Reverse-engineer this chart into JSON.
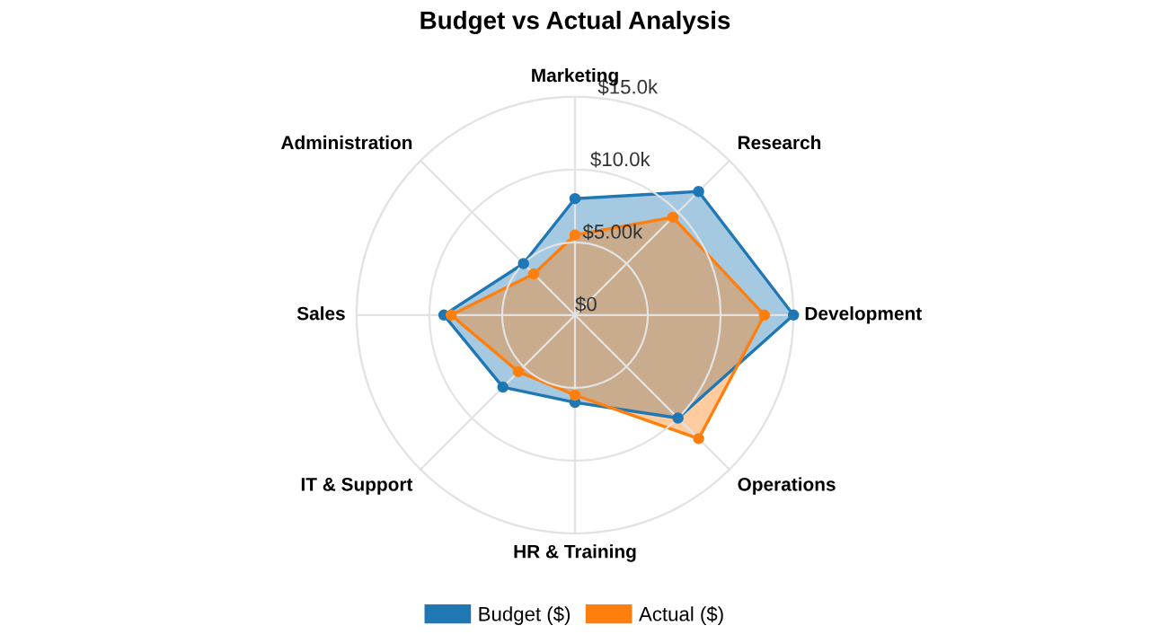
{
  "chart_data": {
    "type": "radar",
    "title": "Budget vs Actual Analysis",
    "categories": [
      "Marketing",
      "Research",
      "Development",
      "Operations",
      "HR & Training",
      "IT & Support",
      "Sales",
      "Administration"
    ],
    "series": [
      {
        "name": "Budget ($)",
        "color": "#1f77b4",
        "values": [
          8.0,
          12.0,
          15.0,
          10.0,
          6.0,
          7.0,
          9.0,
          5.0
        ]
      },
      {
        "name": "Actual ($)",
        "color": "#ff7f0e",
        "values": [
          5.5,
          9.5,
          13.0,
          12.0,
          5.5,
          5.5,
          8.5,
          4.0
        ]
      }
    ],
    "ylim": [
      0,
      15
    ],
    "yticks": [
      {
        "value": 0,
        "label": "$0"
      },
      {
        "value": 5,
        "label": "$5.00k"
      },
      {
        "value": 10,
        "label": "$10.0k"
      },
      {
        "value": 15,
        "label": "$15.0k"
      }
    ],
    "grid": true,
    "legend": "bottom",
    "marker": "circle",
    "line_style": "solid"
  }
}
